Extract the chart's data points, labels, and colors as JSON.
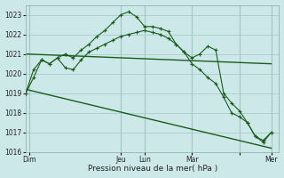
{
  "background_color": "#cce8e8",
  "grid_color": "#aacccc",
  "line_color_dark": "#1a5c1a",
  "xlabel": "Pression niveau de la mer( hPa )",
  "ylim": [
    1016,
    1023.5
  ],
  "yticks": [
    1016,
    1017,
    1018,
    1019,
    1020,
    1021,
    1022,
    1023
  ],
  "xlim": [
    0,
    32
  ],
  "xtick_positions": [
    0.5,
    12,
    15,
    21,
    27,
    31
  ],
  "xtick_labels": [
    "Dim",
    "Jeu",
    "Lun",
    "Mar",
    "",
    "Mer"
  ],
  "series_wavy": {
    "x": [
      0,
      1,
      2,
      3,
      4,
      5,
      6,
      7,
      8,
      9,
      10,
      11,
      12,
      13,
      14,
      15,
      16,
      17,
      18,
      19,
      20,
      21,
      22,
      23,
      24,
      25,
      26,
      27,
      28,
      29,
      30,
      31
    ],
    "y": [
      1019.0,
      1019.8,
      1020.7,
      1020.5,
      1020.8,
      1021.0,
      1020.8,
      1021.2,
      1021.5,
      1021.9,
      1022.2,
      1022.6,
      1023.0,
      1023.15,
      1022.9,
      1022.4,
      1022.4,
      1022.3,
      1022.15,
      1021.5,
      1021.1,
      1020.8,
      1021.0,
      1021.4,
      1021.2,
      1019.0,
      1018.5,
      1018.1,
      1017.5,
      1016.8,
      1016.5,
      1017.0
    ]
  },
  "series_zigzag": {
    "x": [
      0,
      1,
      2,
      3,
      4,
      5,
      6,
      7,
      8,
      9,
      10,
      11,
      12,
      13,
      14,
      15,
      16,
      17,
      18,
      19,
      20,
      21,
      22,
      23,
      24,
      25,
      26,
      27,
      28,
      29,
      30,
      31
    ],
    "y": [
      1019.0,
      1020.2,
      1020.7,
      1020.5,
      1020.8,
      1020.3,
      1020.2,
      1020.7,
      1021.1,
      1021.3,
      1021.5,
      1021.7,
      1021.9,
      1022.0,
      1022.1,
      1022.2,
      1022.1,
      1022.0,
      1021.8,
      1021.5,
      1021.1,
      1020.5,
      1020.2,
      1019.8,
      1019.5,
      1018.8,
      1018.0,
      1017.8,
      1017.5,
      1016.8,
      1016.6,
      1017.0
    ]
  },
  "series_flat": {
    "x": [
      0,
      31
    ],
    "y": [
      1021.0,
      1020.5
    ]
  },
  "series_diagonal": {
    "x": [
      0,
      31
    ],
    "y": [
      1019.2,
      1016.2
    ]
  }
}
